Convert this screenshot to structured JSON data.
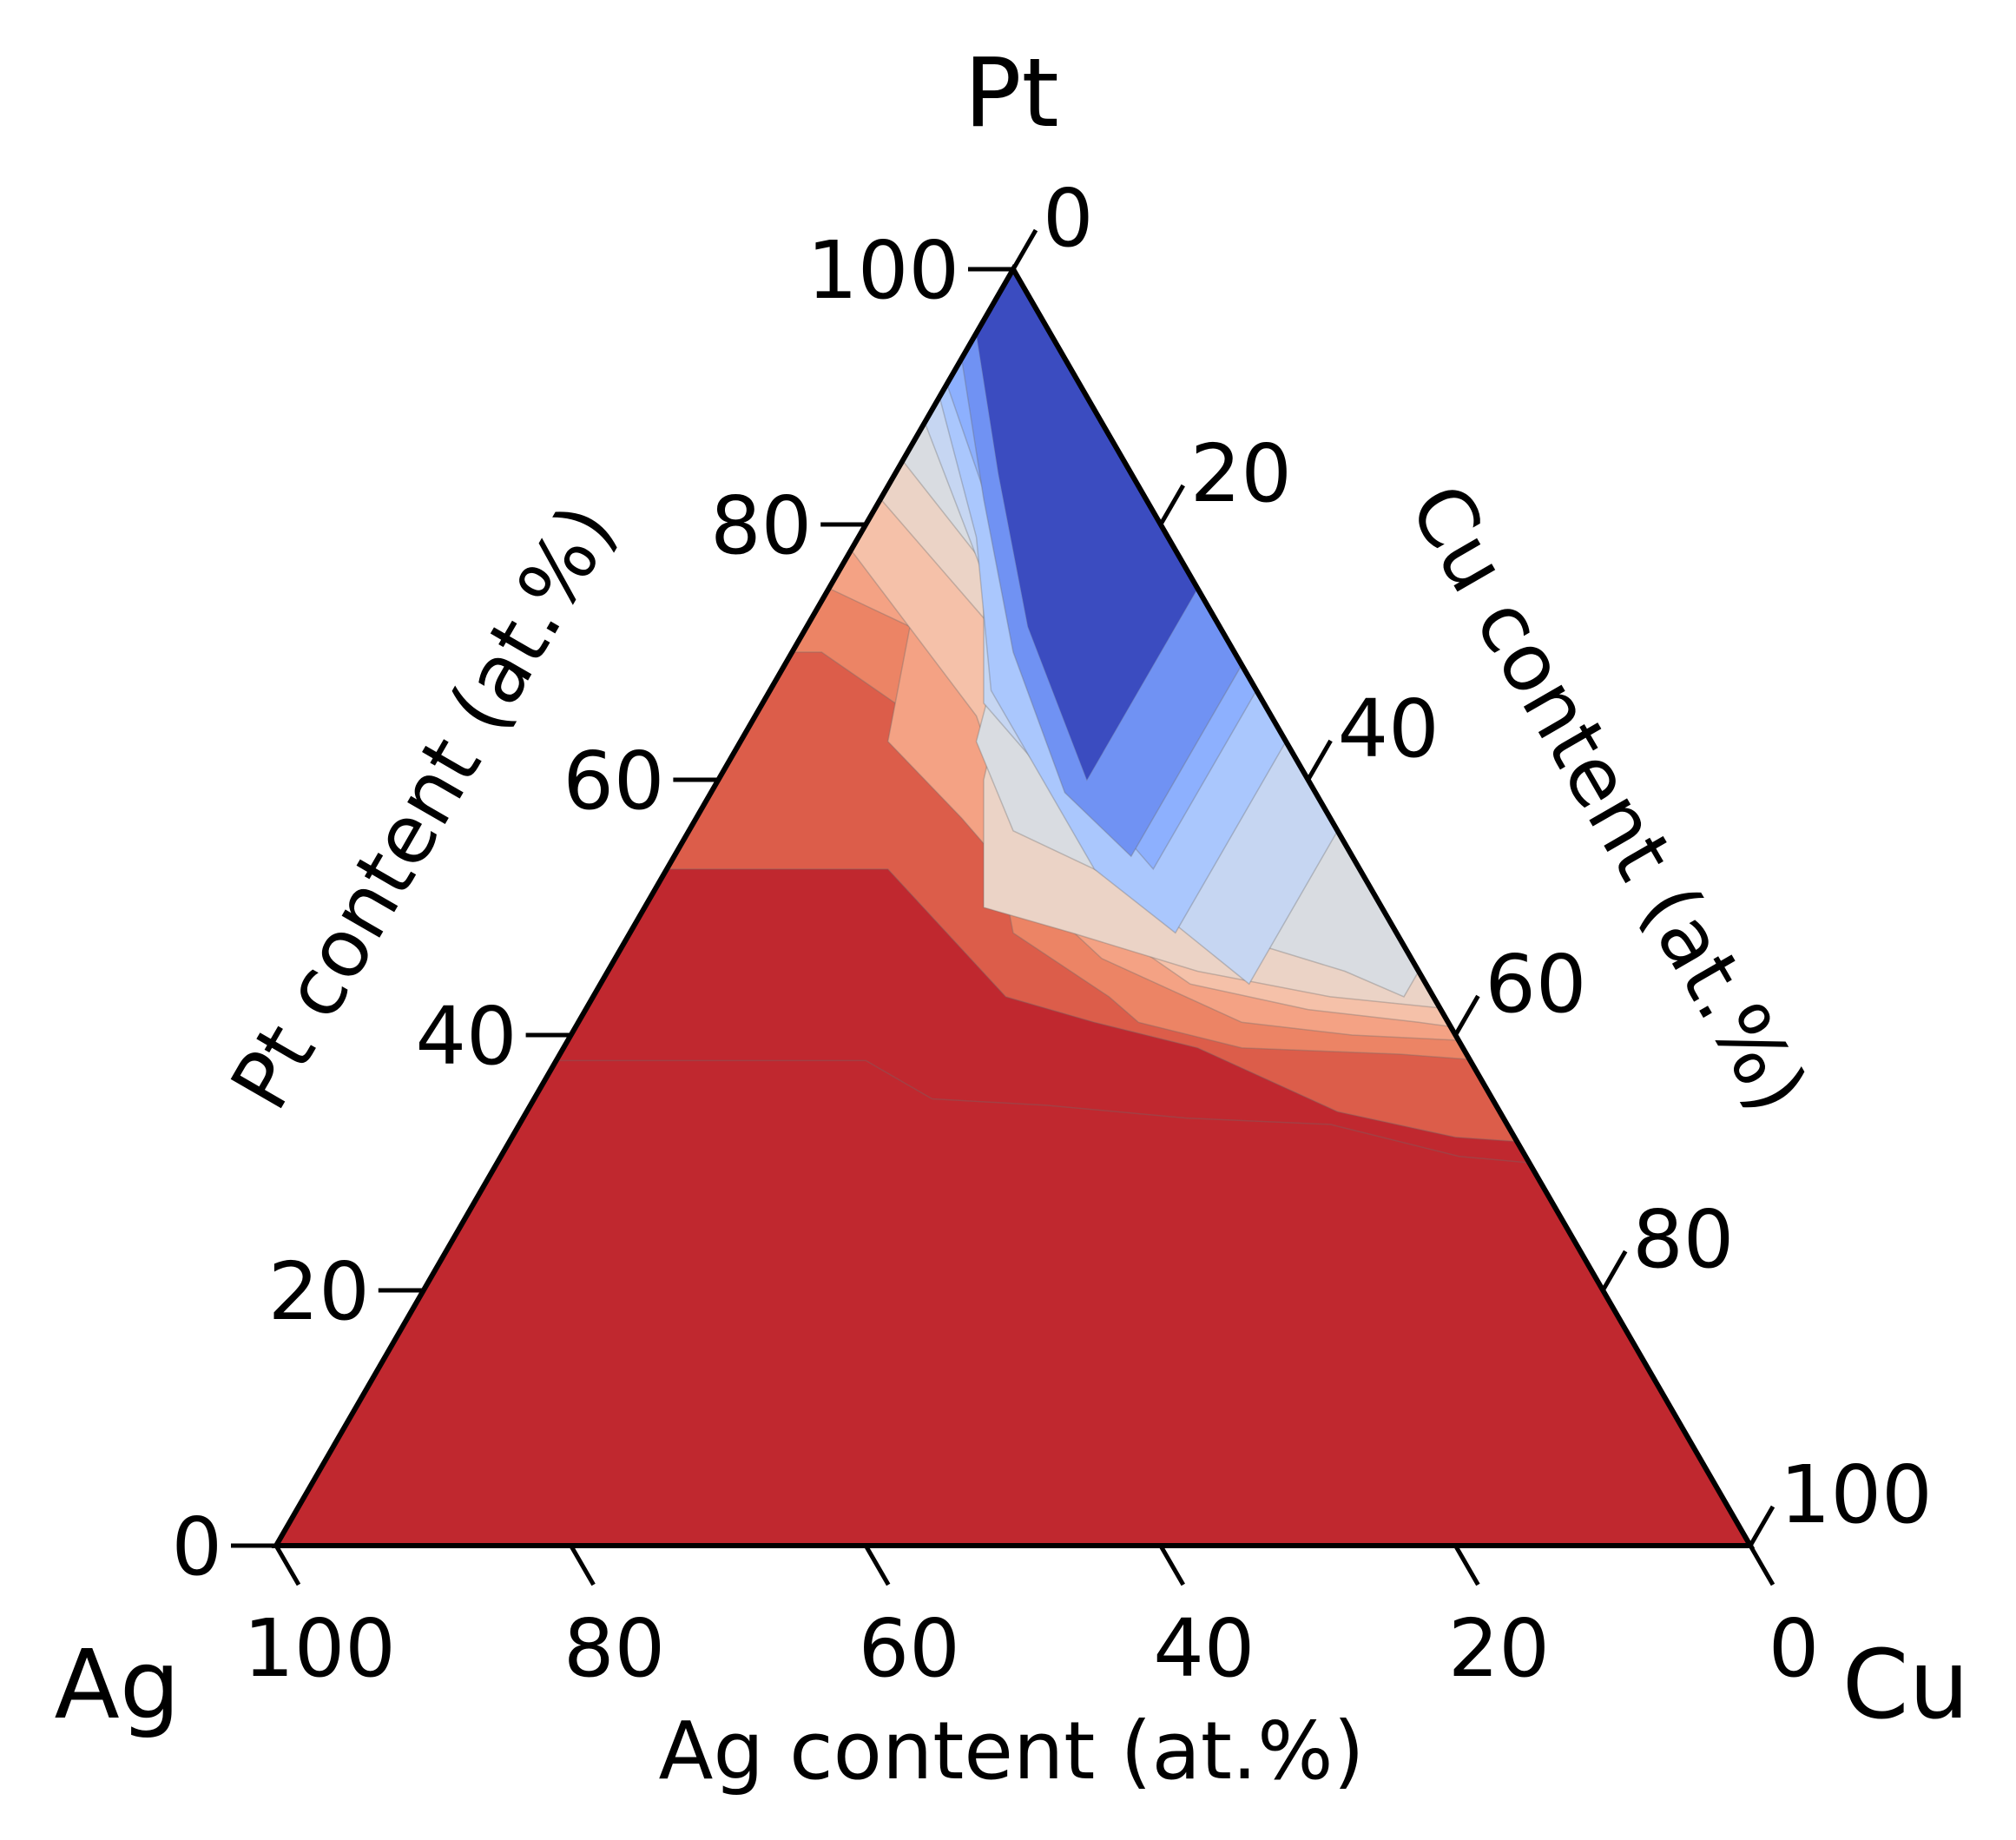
{
  "chart_data": {
    "type": "ternary-contour",
    "title": "",
    "corners": {
      "left": "Ag",
      "top": "Pt",
      "right": "Cu"
    },
    "axes": {
      "pt": {
        "label": "Pt content (at.%)",
        "ticks": [
          0,
          20,
          40,
          60,
          80,
          100
        ]
      },
      "cu": {
        "label": "Cu content (at.%)",
        "ticks": [
          0,
          20,
          40,
          60,
          80,
          100
        ]
      },
      "ag": {
        "label": "Ag content (at.%)",
        "ticks": [
          100,
          80,
          60,
          40,
          20,
          0
        ]
      }
    },
    "grid": false,
    "legend": "none",
    "colormap": [
      "#3b4cc0",
      "#5470de",
      "#7092f3",
      "#8db0fe",
      "#aac7fd",
      "#c6d6f2",
      "#d9dce1",
      "#ebd3c6",
      "#f5c1a9",
      "#f4a284",
      "#ec8465",
      "#dc5d4a",
      "#c0282f"
    ],
    "contour_boundaries_pt_vs_cu": [
      {
        "cu": [
          0,
          7,
          15,
          25
        ],
        "pt": [
          95,
          84,
          72,
          60
        ]
      },
      {
        "cu": [
          0,
          7,
          15,
          24,
          31
        ],
        "pt": [
          93,
          82,
          70,
          59,
          54
        ]
      },
      {
        "cu": [
          0,
          8,
          16,
          23,
          33
        ],
        "pt": [
          91,
          81,
          70,
          61,
          53
        ]
      },
      {
        "cu": [
          0,
          8,
          15,
          22,
          29,
          37
        ],
        "pt": [
          90,
          79,
          67,
          60,
          53,
          48
        ]
      },
      {
        "cu": [
          0,
          10,
          15,
          20,
          28,
          33,
          44
        ],
        "pt": [
          88,
          76,
          66,
          62,
          55,
          51,
          44
        ]
      },
      {
        "cu": [
          0,
          13,
          16,
          22,
          29,
          40,
          50,
          55
        ],
        "pt": [
          85,
          74,
          63,
          56,
          53,
          48,
          45,
          43
        ]
      },
      {
        "cu": [
          0,
          15,
          18,
          23,
          30,
          40,
          50,
          59
        ],
        "pt": [
          82,
          70,
          60,
          50,
          48,
          45,
          43,
          42
        ]
      },
      {
        "cu": [
          0,
          15,
          23,
          33,
          40,
          49,
          57,
          64
        ],
        "pt": [
          78,
          65,
          55,
          48,
          44,
          42,
          41,
          40
        ]
      },
      {
        "cu": [
          0,
          7,
          10,
          18,
          23,
          33,
          45,
          53,
          62,
          70
        ],
        "pt": [
          75,
          72,
          63,
          57,
          53,
          46,
          41,
          40,
          39.5,
          39
        ]
      },
      {
        "cu": [
          2,
          16,
          22,
          26,
          35,
          38,
          46,
          57,
          63,
          69,
          77
        ],
        "pt": [
          70,
          62,
          54,
          48,
          43,
          41,
          39,
          38.5,
          38,
          37.5,
          37
        ]
      },
      {
        "cu": [
          15,
          28,
          35,
          43,
          55,
          64,
          77,
          82,
          86
        ],
        "pt": [
          53,
          43,
          41,
          39,
          34,
          32,
          31,
          32,
          31
        ]
      },
      {
        "cu": [
          21,
          27,
          35,
          45,
          55,
          65,
          80,
          85,
          92,
          98
        ],
        "pt": [
          38,
          35,
          34.5,
          33.5,
          33,
          30.5,
          29,
          27,
          24,
          24
        ]
      }
    ]
  }
}
